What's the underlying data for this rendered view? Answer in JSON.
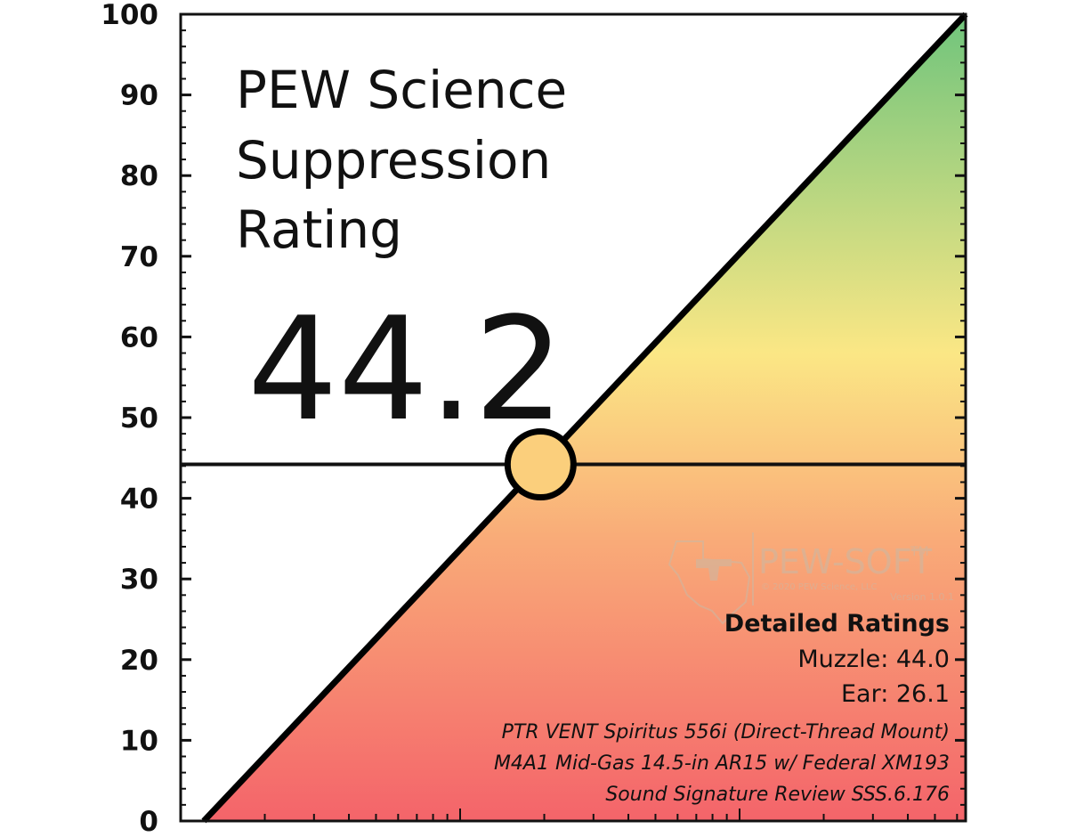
{
  "chart_data": {
    "type": "line",
    "title": "PEW Science Suppression Rating",
    "title_lines": [
      "PEW Science",
      "Suppression",
      "Rating"
    ],
    "rating_value": 44.2,
    "rating_label": "44.2",
    "ylim": [
      0,
      100
    ],
    "y_ticks": [
      0,
      10,
      20,
      30,
      40,
      50,
      60,
      70,
      80,
      90,
      100
    ],
    "y_tick_labels": [
      "0",
      "10",
      "20",
      "30",
      "40",
      "50",
      "60",
      "70",
      "80",
      "90",
      "100"
    ],
    "xlabel": "",
    "ylabel": "",
    "grid": false,
    "diagonal_line": {
      "from": [
        0,
        0
      ],
      "to": [
        100,
        100
      ]
    },
    "fill_gradient": {
      "bottom": "#f4646a",
      "lower_mid": "#f9ab78",
      "middle": "#fbe785",
      "top": "#6fc47c"
    },
    "details": {
      "heading": "Detailed Ratings",
      "muzzle": "Muzzle: 44.0",
      "ear": "Ear: 26.1"
    },
    "source_lines": [
      "PTR VENT Spiritus 556i (Direct-Thread Mount)",
      "M4A1 Mid-Gas 14.5-in AR15 w/ Federal XM193",
      "Sound Signature Review SSS.6.176"
    ],
    "watermark": {
      "brand": "PEW-SOFT",
      "trademark": "TM",
      "copyright": "© 2020 PEW Science, LLC",
      "version": "Version 1.0.1"
    }
  }
}
